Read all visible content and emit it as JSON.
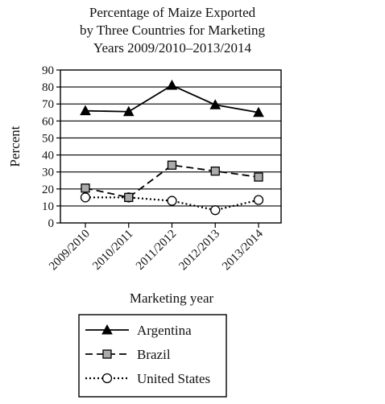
{
  "chart_data": {
    "type": "line",
    "title": [
      "Percentage of Maize Exported",
      "by Three Countries for Marketing",
      "Years 2009/2010–2013/2014"
    ],
    "xlabel": "Marketing year",
    "ylabel": "Percent",
    "categories": [
      "2009/2010",
      "2010/2011",
      "2011/2012",
      "2012/2013",
      "2013/2014"
    ],
    "ylim": [
      0,
      90
    ],
    "yticks": [
      "0",
      "10",
      "20",
      "30",
      "40",
      "50",
      "60",
      "70",
      "80",
      "90"
    ],
    "grid": true,
    "legend_position": "bottom",
    "series": [
      {
        "name": "Argentina",
        "values": [
          66,
          65.5,
          81,
          69.5,
          65
        ],
        "marker": "triangle",
        "line": "solid",
        "color": "#000000"
      },
      {
        "name": "Brazil",
        "values": [
          20.5,
          15,
          34,
          30.5,
          27
        ],
        "marker": "square",
        "line": "dashed",
        "color": "#000000",
        "marker_fill": "#aaaaaa"
      },
      {
        "name": "United States",
        "values": [
          15,
          15,
          13,
          7.5,
          13.5
        ],
        "marker": "circle",
        "line": "dotted",
        "color": "#000000",
        "marker_fill": "#ffffff"
      }
    ]
  }
}
